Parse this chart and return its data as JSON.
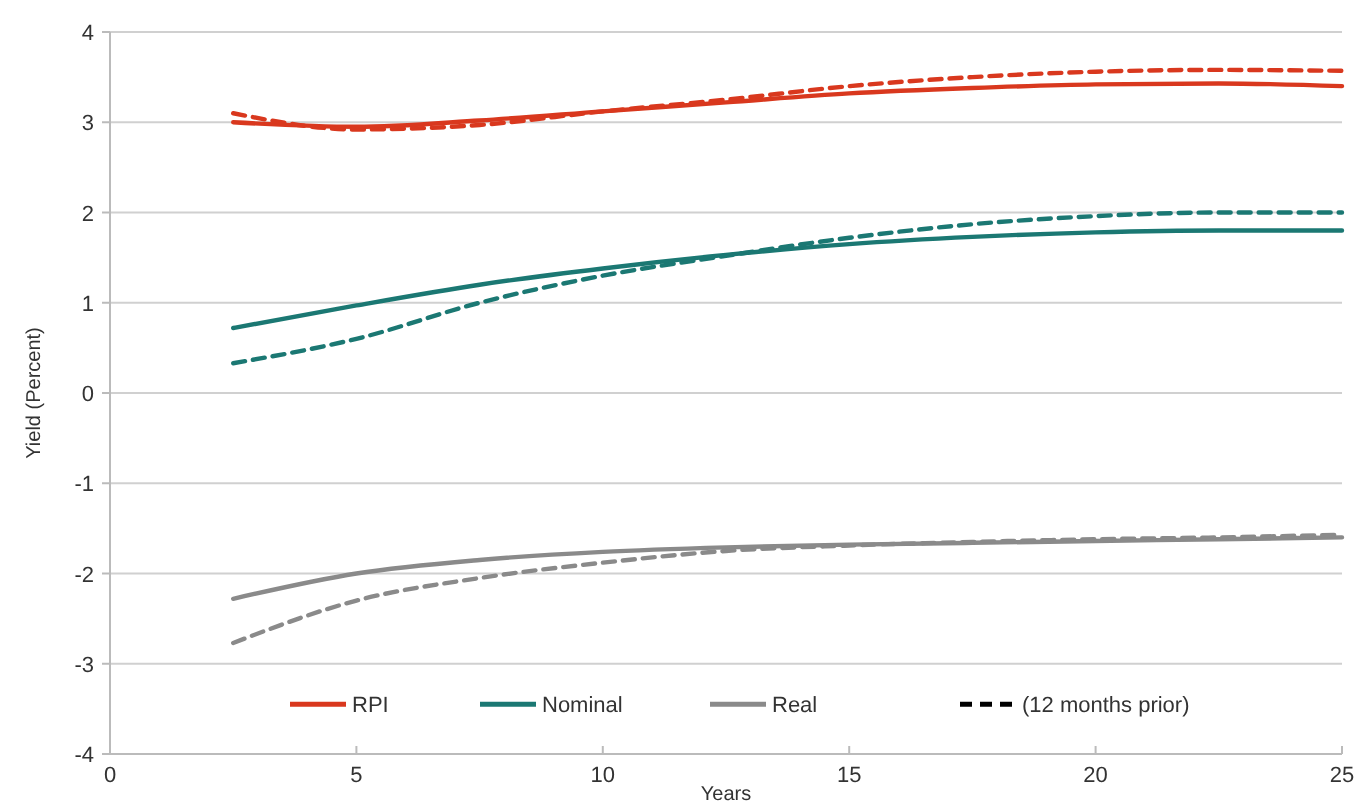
{
  "chart_data": {
    "type": "line",
    "xlabel": "Years",
    "ylabel": "Yield (Percent)",
    "xlim": [
      0,
      25
    ],
    "xticks": [
      0,
      5,
      10,
      15,
      20,
      25
    ],
    "ylim": [
      -4,
      4
    ],
    "yticks": [
      -4,
      -3,
      -2,
      -1,
      0,
      1,
      2,
      3,
      4
    ],
    "grid": "y",
    "legend": "bottom",
    "marker": "none",
    "annotations": [
      "(12 months prior)"
    ],
    "x": [
      2.5,
      5,
      7.5,
      10,
      12.5,
      15,
      17.5,
      20,
      22.5,
      25
    ],
    "series": [
      {
        "name": "RPI",
        "color": "#d9381e",
        "line_style": "solid",
        "values": [
          3.0,
          2.95,
          3.02,
          3.12,
          3.22,
          3.32,
          3.38,
          3.42,
          3.43,
          3.4
        ]
      },
      {
        "name": "Nominal",
        "color": "#1b7873",
        "line_style": "solid",
        "values": [
          0.72,
          0.97,
          1.2,
          1.38,
          1.53,
          1.65,
          1.73,
          1.78,
          1.8,
          1.8
        ]
      },
      {
        "name": "Real",
        "color": "#8a8a8a",
        "line_style": "solid",
        "values": [
          -2.28,
          -2.0,
          -1.85,
          -1.76,
          -1.71,
          -1.68,
          -1.66,
          -1.64,
          -1.62,
          -1.6
        ]
      },
      {
        "color": "#d9381e",
        "line_style": "dashed",
        "values": [
          3.1,
          2.92,
          2.97,
          3.12,
          3.25,
          3.4,
          3.5,
          3.56,
          3.58,
          3.57
        ]
      },
      {
        "color": "#1b7873",
        "line_style": "dashed",
        "values": [
          0.33,
          0.6,
          1.0,
          1.3,
          1.52,
          1.72,
          1.87,
          1.96,
          2.0,
          2.0
        ]
      },
      {
        "color": "#8a8a8a",
        "line_style": "dashed",
        "values": [
          -2.77,
          -2.3,
          -2.05,
          -1.88,
          -1.75,
          -1.69,
          -1.65,
          -1.62,
          -1.6,
          -1.57
        ]
      }
    ]
  }
}
